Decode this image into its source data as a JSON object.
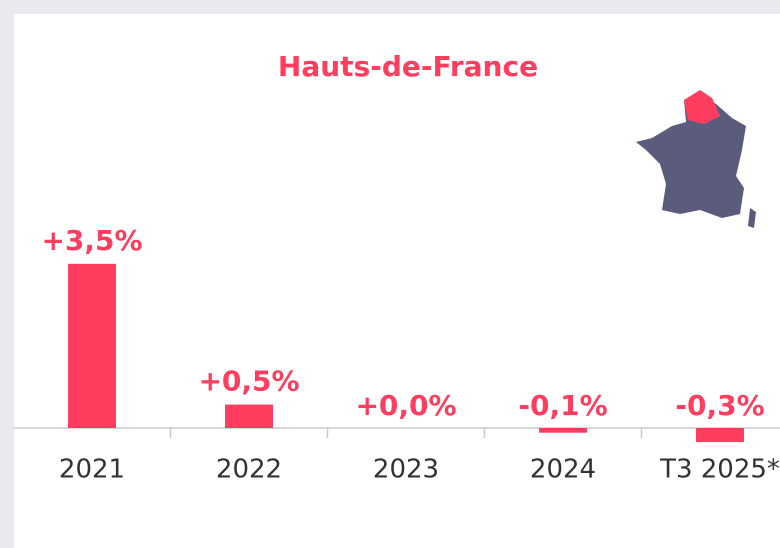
{
  "chart_data": {
    "type": "bar",
    "title": "Hauts-de-France",
    "categories": [
      "2021",
      "2022",
      "2023",
      "2024",
      "T3 2025*"
    ],
    "values": [
      3.5,
      0.5,
      0.0,
      -0.1,
      -0.3
    ],
    "value_labels": [
      "+3,5%",
      "+0,5%",
      "+0,0%",
      "-0,1%",
      "-0,3%"
    ],
    "color": "#ff3d5f"
  }
}
